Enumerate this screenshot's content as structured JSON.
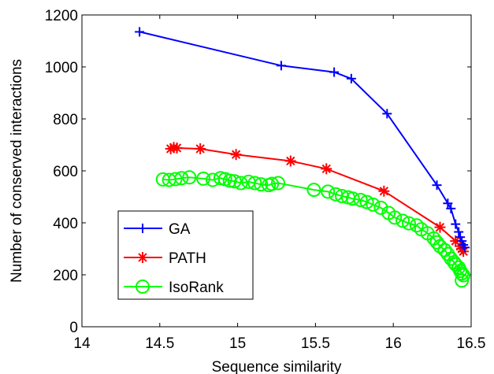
{
  "chart_data": {
    "type": "line",
    "xlabel": "Sequence similarity",
    "ylabel": "Number of conserved interactions",
    "xlim": [
      14,
      16.5
    ],
    "ylim": [
      0,
      1200
    ],
    "xticks": [
      14,
      14.5,
      15,
      15.5,
      16,
      16.5
    ],
    "xtick_labels": [
      "14",
      "14.5",
      "15",
      "15.5",
      "16",
      "16.5"
    ],
    "yticks": [
      0,
      200,
      400,
      600,
      800,
      1000,
      1200
    ],
    "ytick_labels": [
      "0",
      "200",
      "400",
      "600",
      "800",
      "1000",
      "1200"
    ],
    "legend_position": "lower-left",
    "grid": false,
    "series": [
      {
        "name": "GA",
        "color": "#0000ff",
        "marker": "plus",
        "x": [
          14.37,
          15.28,
          15.62,
          15.73,
          15.96,
          16.28,
          16.35,
          16.37,
          16.4,
          16.42,
          16.43,
          16.44,
          16.45,
          16.46
        ],
        "y": [
          1135,
          1005,
          980,
          955,
          820,
          545,
          475,
          455,
          395,
          365,
          345,
          330,
          315,
          305
        ]
      },
      {
        "name": "PATH",
        "color": "#ff0000",
        "marker": "star",
        "x": [
          14.57,
          14.59,
          14.61,
          14.76,
          14.99,
          15.34,
          15.57,
          15.94,
          16.3,
          16.4,
          16.43,
          16.44,
          16.45
        ],
        "y": [
          685,
          690,
          688,
          685,
          663,
          638,
          608,
          522,
          383,
          330,
          310,
          300,
          290
        ]
      },
      {
        "name": "IsoRank",
        "color": "#00ff00",
        "marker": "circle",
        "x": [
          14.52,
          14.56,
          14.6,
          14.64,
          14.69,
          14.78,
          14.84,
          14.89,
          14.92,
          14.95,
          14.98,
          15.02,
          15.07,
          15.11,
          15.15,
          15.2,
          15.22,
          15.26,
          15.49,
          15.58,
          15.63,
          15.67,
          15.71,
          15.74,
          15.79,
          15.83,
          15.87,
          15.92,
          15.97,
          16.01,
          16.06,
          16.1,
          16.15,
          16.18,
          16.22,
          16.26,
          16.28,
          16.3,
          16.33,
          16.35,
          16.37,
          16.39,
          16.4,
          16.42,
          16.43,
          16.44,
          16.45,
          16.44
        ],
        "y": [
          567,
          565,
          568,
          572,
          575,
          570,
          565,
          572,
          568,
          562,
          560,
          553,
          558,
          553,
          548,
          545,
          550,
          553,
          527,
          520,
          510,
          503,
          498,
          493,
          488,
          480,
          470,
          458,
          438,
          420,
          408,
          398,
          390,
          375,
          360,
          340,
          325,
          310,
          295,
          280,
          262,
          248,
          240,
          228,
          215,
          205,
          198,
          178
        ]
      }
    ]
  }
}
